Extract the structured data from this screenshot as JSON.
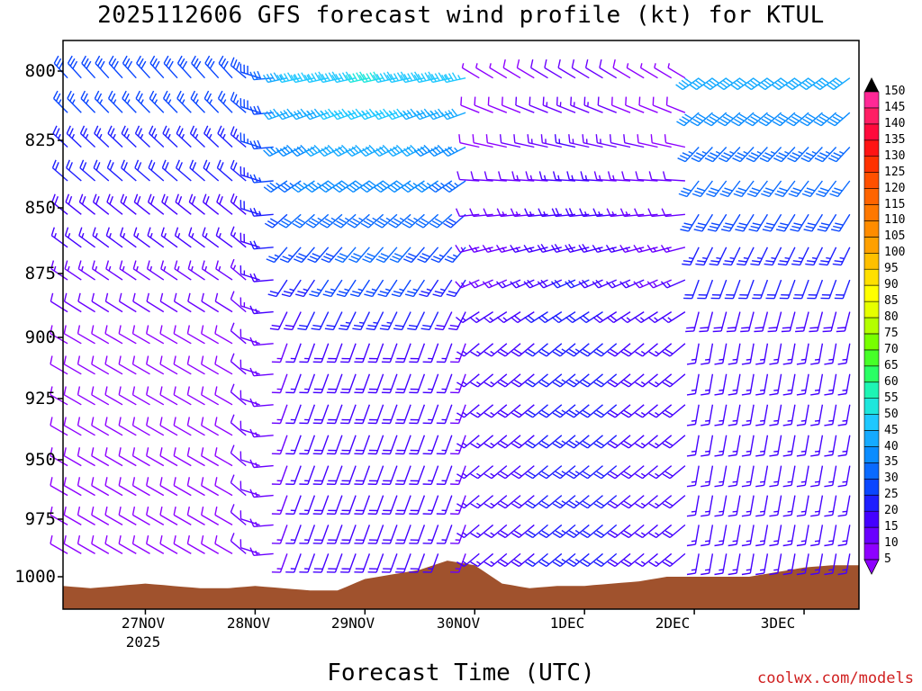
{
  "title": "2025112606 GFS forecast wind profile (kt) for KTUL",
  "xlabel": "Forecast Time (UTC)",
  "credit": "coolwx.com/models",
  "colors": {
    "terrain": "#a0522d",
    "palette": [
      "#8e00ff",
      "#6a00ff",
      "#4400ff",
      "#1e1eff",
      "#0a46ff",
      "#0a6aff",
      "#0a8cff",
      "#16aaff",
      "#1ec8ff",
      "#1ee6dc",
      "#1ef5b4",
      "#2aff64",
      "#46ff28",
      "#78ff00",
      "#b4ff00",
      "#e6ff00",
      "#ffff00",
      "#ffe000",
      "#ffc000",
      "#ffa000",
      "#ff8c00",
      "#ff7800",
      "#ff6400",
      "#ff5000",
      "#ff3200",
      "#ff1414",
      "#ff0a3c",
      "#ff1e64",
      "#ff2896",
      "#ff1ec8",
      "#ff32ff"
    ]
  },
  "chart_data": {
    "type": "wind-barb time-height section",
    "title": "2025112606 GFS forecast wind profile (kt) for KTUL",
    "xlabel": "Forecast Time (UTC)",
    "ylabel": "",
    "y_axis": {
      "label": "",
      "ticks": [
        800,
        825,
        850,
        875,
        900,
        925,
        950,
        975,
        1000
      ],
      "range_hpa": [
        788,
        1012
      ],
      "inverted": true
    },
    "x_axis": {
      "ticks": [
        "27NOV",
        "28NOV",
        "29NOV",
        "30NOV",
        "1DEC",
        "2DEC",
        "3DEC"
      ],
      "year_label": "2025",
      "range_hours_from_init": [
        0,
        174
      ],
      "tick_hours": [
        18,
        42,
        66,
        90,
        114,
        138,
        162
      ]
    },
    "colorbar": {
      "units": "kt",
      "levels": [
        5,
        10,
        15,
        20,
        25,
        30,
        35,
        40,
        45,
        50,
        55,
        60,
        65,
        70,
        75,
        80,
        85,
        90,
        95,
        100,
        105,
        110,
        115,
        120,
        125,
        130,
        135,
        140,
        145,
        150
      ],
      "labels": [
        "5",
        "10",
        "15",
        "20",
        "25",
        "30",
        "35",
        "40",
        "45",
        "50",
        "55",
        "60",
        "65",
        "70",
        "75",
        "80",
        "85",
        "90",
        "95",
        "100",
        "105",
        "110",
        "115",
        "120",
        "125",
        "130",
        "135",
        "140",
        "145",
        "150"
      ]
    },
    "surface_pressure_hpa": {
      "hours": [
        0,
        6,
        12,
        18,
        24,
        30,
        36,
        42,
        48,
        54,
        60,
        66,
        72,
        78,
        84,
        90,
        96,
        102,
        108,
        114,
        120,
        126,
        132,
        138,
        144,
        150,
        156,
        162,
        168,
        174
      ],
      "values": [
        1004,
        1005,
        1004,
        1003,
        1004,
        1005,
        1005,
        1004,
        1005,
        1006,
        1006,
        1001,
        999,
        997,
        993,
        995,
        1003,
        1005,
        1004,
        1004,
        1003,
        1002,
        1000,
        1000,
        1000,
        1000,
        998,
        996,
        995,
        995
      ]
    },
    "wind_regimes": [
      {
        "from_hour": 0,
        "to_hour": 36,
        "upper": "NW 25-35 kt",
        "lower": "light/variable 5-15 kt"
      },
      {
        "from_hour": 48,
        "to_hour": 90,
        "upper": "W-WSW 40-55 kt",
        "lower": "S-SW 10-30 kt"
      },
      {
        "from_hour": 90,
        "to_hour": 138,
        "upper": "light NW 5-15 kt",
        "lower": "SW 15-25 kt"
      },
      {
        "from_hour": 138,
        "to_hour": 174,
        "upper": "SW 35-50 kt",
        "lower": "S 10-35 kt"
      }
    ]
  }
}
